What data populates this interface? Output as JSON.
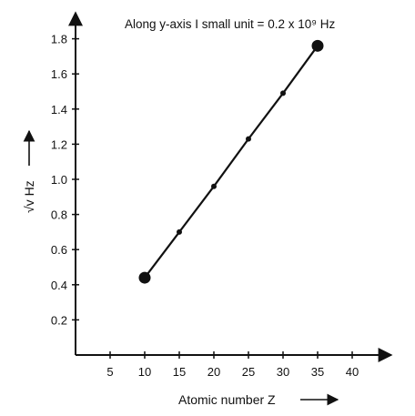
{
  "chart_data": {
    "type": "line",
    "annotation": "Along y-axis I small unit = 0.2 x 10⁹ Hz",
    "xlabel": "Atomic number Z",
    "ylabel": "√v Hz",
    "x_ticks": [
      5,
      10,
      15,
      20,
      25,
      30,
      35,
      40
    ],
    "y_ticks": [
      "0.2",
      "0.4",
      "0.6",
      "0.8",
      "1.0",
      "1.2",
      "1.4",
      "1.6",
      "1.8"
    ],
    "xlim": [
      0,
      42
    ],
    "ylim": [
      0,
      1.9
    ],
    "grid": false,
    "series": [
      {
        "x": [
          10,
          15,
          20,
          25,
          30,
          35
        ],
        "y": [
          0.44,
          0.7,
          0.96,
          1.23,
          1.49,
          1.76
        ],
        "highlighted_endpoints": true
      }
    ]
  }
}
